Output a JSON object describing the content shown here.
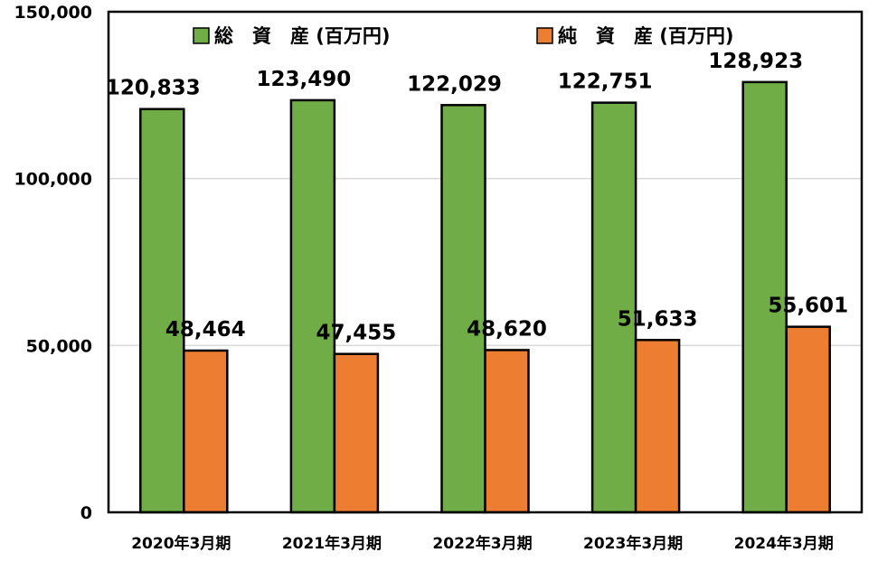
{
  "chart_data": {
    "type": "bar",
    "categories": [
      "2020年3月期",
      "2021年3月期",
      "2022年3月期",
      "2023年3月期",
      "2024年3月期"
    ],
    "series": [
      {
        "name": "総　資　産 (百万円)",
        "color": "#70ad47",
        "values": [
          120833,
          123490,
          122029,
          122751,
          128923
        ]
      },
      {
        "name": "純　資　産 (百万円)",
        "color": "#ed7d31",
        "values": [
          48464,
          47455,
          48620,
          51633,
          55601
        ]
      }
    ],
    "data_labels": [
      [
        "120,833",
        "123,490",
        "122,029",
        "122,751",
        "128,923"
      ],
      [
        "48,464",
        "47,455",
        "48,620",
        "51,633",
        "55,601"
      ]
    ],
    "y_ticks": [
      0,
      50000,
      100000,
      150000
    ],
    "y_tick_labels": [
      "0",
      "50,000",
      "100,000",
      "150,000"
    ],
    "ylim": [
      0,
      150000
    ],
    "grid": true,
    "legend_position": "top"
  }
}
